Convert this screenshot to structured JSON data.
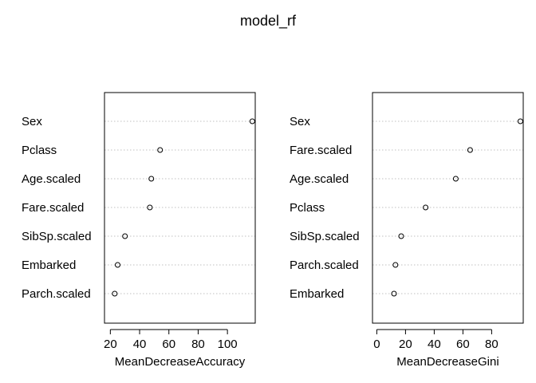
{
  "title": "model_rf",
  "chart_data": [
    {
      "type": "scatter",
      "variant": "dotchart",
      "xlabel": "MeanDecreaseAccuracy",
      "xlim": [
        16,
        119
      ],
      "xticks": [
        20,
        40,
        60,
        80,
        100
      ],
      "grid": "dotted horizontal",
      "labels": [
        "Sex",
        "Pclass",
        "Age.scaled",
        "Fare.scaled",
        "SibSp.scaled",
        "Embarked",
        "Parch.scaled"
      ],
      "values": [
        117,
        54,
        48,
        47,
        30,
        25,
        23
      ]
    },
    {
      "type": "scatter",
      "variant": "dotchart",
      "xlabel": "MeanDecreaseGini",
      "xlim": [
        -3,
        102
      ],
      "xticks": [
        0,
        20,
        40,
        60,
        80
      ],
      "grid": "dotted horizontal",
      "labels": [
        "Sex",
        "Fare.scaled",
        "Age.scaled",
        "Pclass",
        "SibSp.scaled",
        "Parch.scaled",
        "Embarked"
      ],
      "values": [
        100,
        65,
        55,
        34,
        17,
        13,
        12
      ]
    }
  ]
}
